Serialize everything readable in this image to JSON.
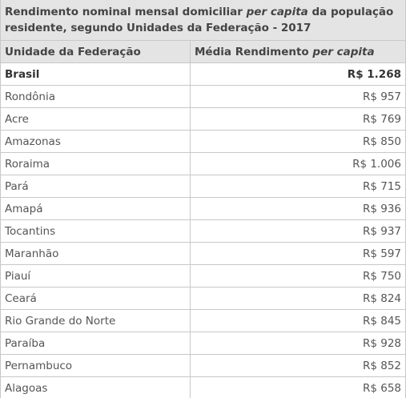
{
  "title": [
    "Rendimento nominal mensal domiciliar",
    "per capita",
    "da população residente, segundo Unidades da Federação - 2017"
  ],
  "table": {
    "header": [
      "Unidade da Federação",
      [
        "Média Rendimento",
        "per capita"
      ]
    ],
    "rows": [
      [
        "Brasil",
        "R$ 1.268"
      ],
      [
        "Rondônia",
        "R$ 957"
      ],
      [
        "Acre",
        "R$ 769"
      ],
      [
        "Amazonas",
        "R$ 850"
      ],
      [
        "Roraima",
        "R$ 1.006"
      ],
      [
        "Pará",
        "R$ 715"
      ],
      [
        "Amapá",
        "R$ 936"
      ],
      [
        "Tocantins",
        "R$ 937"
      ],
      [
        "Maranhão",
        "R$ 597"
      ],
      [
        "Piauí",
        "R$ 750"
      ],
      [
        "Ceará",
        "R$ 824"
      ],
      [
        "Rio Grande do Norte",
        "R$ 845"
      ],
      [
        "Paraíba",
        "R$ 928"
      ],
      [
        "Pernambuco",
        "R$ 852"
      ],
      [
        "Alagoas",
        "R$ 658"
      ]
    ]
  }
}
